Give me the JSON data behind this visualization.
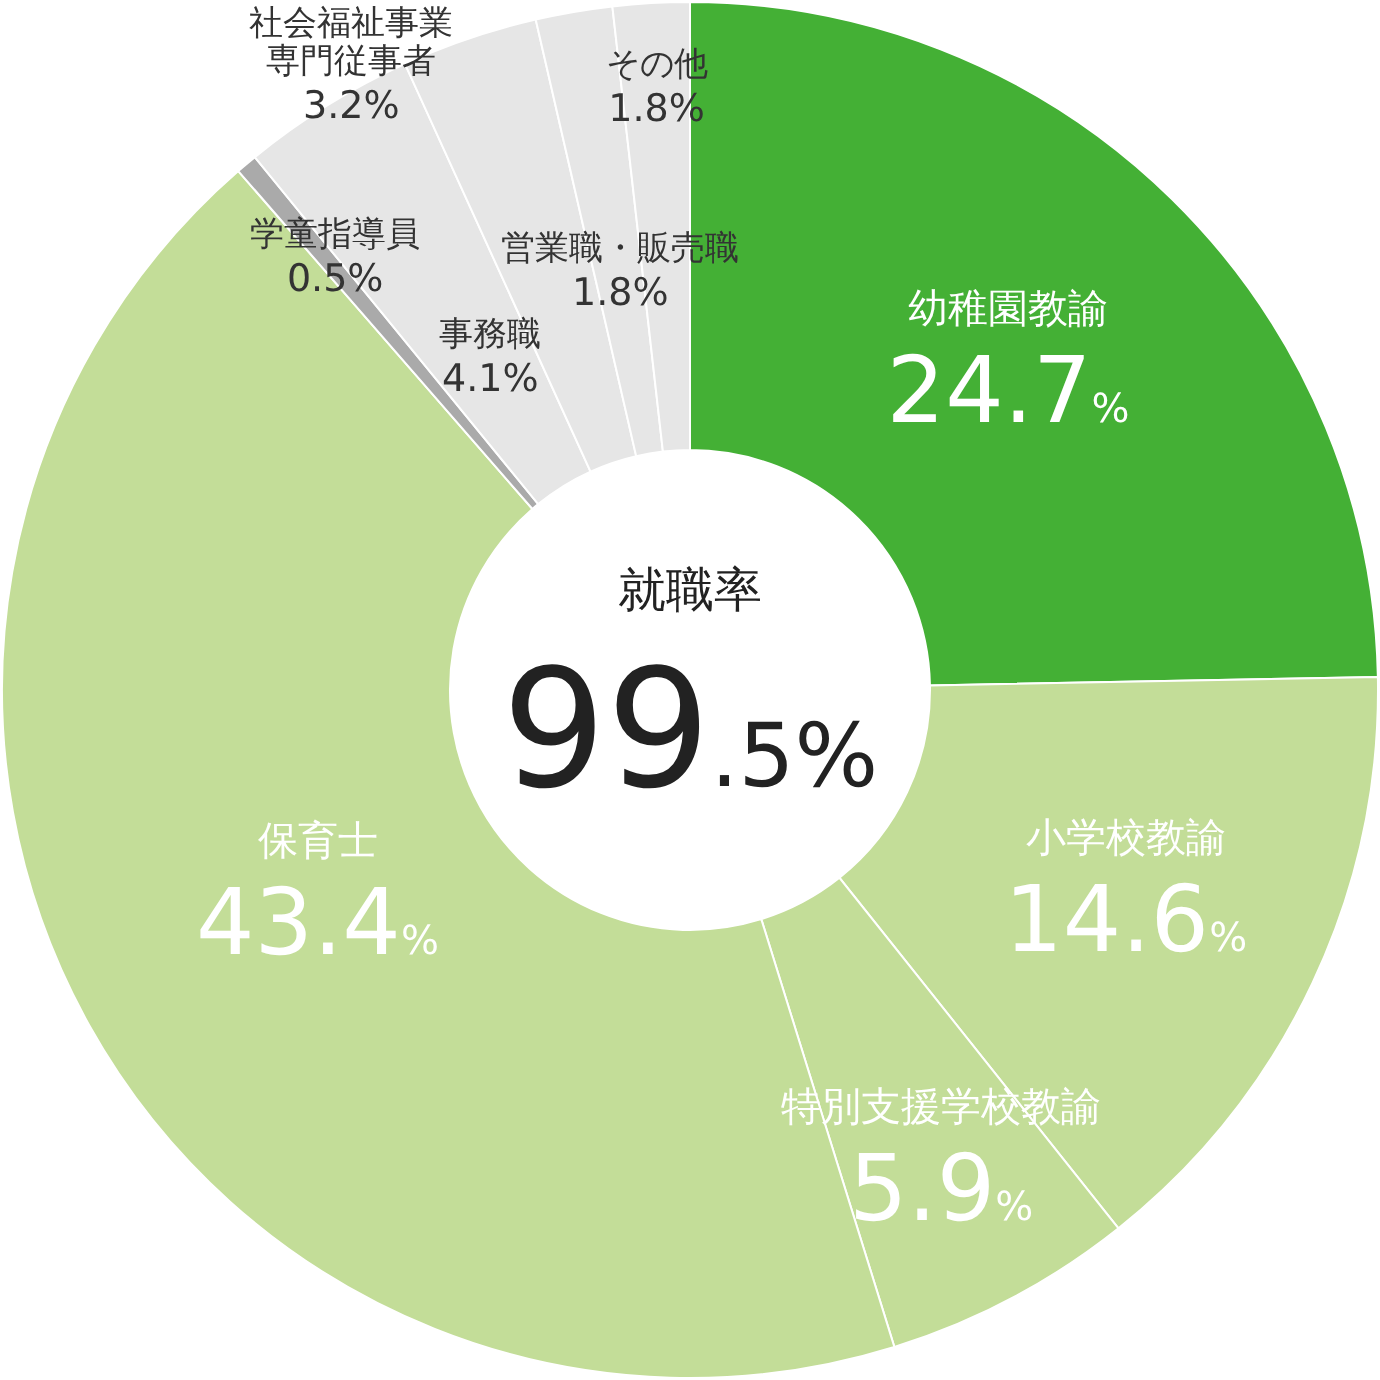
{
  "chart_data": {
    "type": "donut",
    "title": "就職率",
    "categories": [
      "幼稚園教諭",
      "小学校教諭",
      "特別支援学校教諭",
      "保育士",
      "学童指導員",
      "事務職",
      "社会福祉事業専門従事者",
      "営業職・販売職",
      "その他"
    ],
    "values": [
      24.7,
      14.6,
      5.9,
      43.4,
      0.5,
      4.1,
      3.2,
      1.8,
      1.8
    ],
    "value_labels": [
      "24.7%",
      "14.6%",
      "5.9%",
      "43.4%",
      "0.5%",
      "4.1%",
      "3.2%",
      "1.8%",
      "1.8%"
    ],
    "colors": [
      "#44b035",
      "#c3dd98",
      "#c3dd98",
      "#c3dd98",
      "#aaaaaa",
      "#e6e6e6",
      "#e6e6e6",
      "#e6e6e6",
      "#e6e6e6"
    ],
    "annotations": [
      "99.5%"
    ]
  }
}
